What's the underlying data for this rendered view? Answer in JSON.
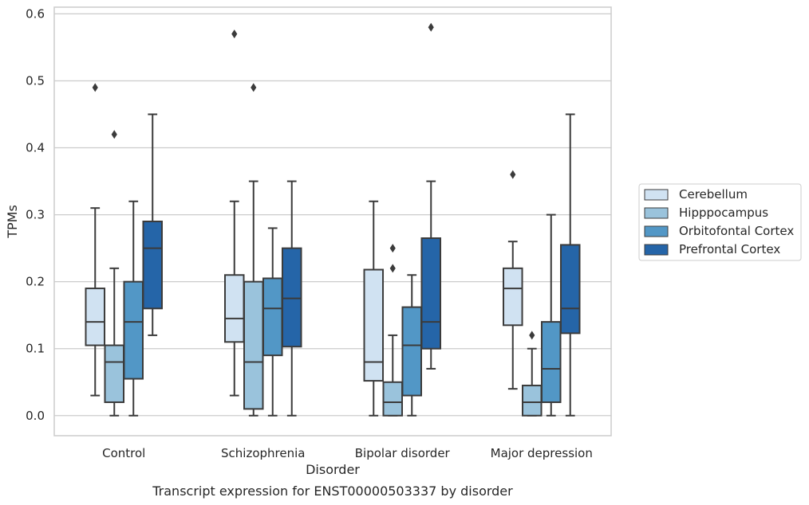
{
  "chart_data": {
    "type": "box",
    "xlabel": "Disorder",
    "ylabel": "TPMs",
    "caption": "Transcript expression for ENST00000503337 by disorder",
    "ylim": [
      -0.03,
      0.61
    ],
    "yticks": [
      "0.0",
      "0.1",
      "0.2",
      "0.3",
      "0.4",
      "0.5",
      "0.6"
    ],
    "grid": "horizontal",
    "legend_placement": "right",
    "categories": [
      "Control",
      "Schizophrenia",
      "Bipolar disorder",
      "Major depression"
    ],
    "series": [
      {
        "name": "Cerebellum",
        "color": "#d0e2f2",
        "boxes": [
          {
            "whisker_low": 0.03,
            "q1": 0.105,
            "median": 0.14,
            "q3": 0.19,
            "whisker_high": 0.31,
            "outliers": [
              0.49
            ]
          },
          {
            "whisker_low": 0.03,
            "q1": 0.11,
            "median": 0.145,
            "q3": 0.21,
            "whisker_high": 0.32,
            "outliers": [
              0.57
            ]
          },
          {
            "whisker_low": 0.0,
            "q1": 0.052,
            "median": 0.08,
            "q3": 0.218,
            "whisker_high": 0.32,
            "outliers": []
          },
          {
            "whisker_low": 0.04,
            "q1": 0.135,
            "median": 0.19,
            "q3": 0.22,
            "whisker_high": 0.26,
            "outliers": [
              0.36
            ]
          }
        ]
      },
      {
        "name": "Hipppocampus",
        "color": "#9ac3dc",
        "boxes": [
          {
            "whisker_low": 0.0,
            "q1": 0.02,
            "median": 0.08,
            "q3": 0.105,
            "whisker_high": 0.22,
            "outliers": [
              0.42
            ]
          },
          {
            "whisker_low": 0.0,
            "q1": 0.01,
            "median": 0.08,
            "q3": 0.2,
            "whisker_high": 0.35,
            "outliers": [
              0.49
            ]
          },
          {
            "whisker_low": 0.0,
            "q1": 0.0,
            "median": 0.02,
            "q3": 0.05,
            "whisker_high": 0.12,
            "outliers": [
              0.22,
              0.25
            ]
          },
          {
            "whisker_low": 0.0,
            "q1": 0.0,
            "median": 0.02,
            "q3": 0.045,
            "whisker_high": 0.1,
            "outliers": [
              0.12
            ]
          }
        ]
      },
      {
        "name": "Orbitofontal Cortex",
        "color": "#5297c6",
        "boxes": [
          {
            "whisker_low": 0.0,
            "q1": 0.055,
            "median": 0.14,
            "q3": 0.2,
            "whisker_high": 0.32,
            "outliers": []
          },
          {
            "whisker_low": 0.0,
            "q1": 0.09,
            "median": 0.16,
            "q3": 0.205,
            "whisker_high": 0.28,
            "outliers": []
          },
          {
            "whisker_low": 0.0,
            "q1": 0.03,
            "median": 0.105,
            "q3": 0.162,
            "whisker_high": 0.21,
            "outliers": []
          },
          {
            "whisker_low": 0.0,
            "q1": 0.02,
            "median": 0.07,
            "q3": 0.14,
            "whisker_high": 0.3,
            "outliers": []
          }
        ]
      },
      {
        "name": "Prefrontal Cortex",
        "color": "#2565a8",
        "boxes": [
          {
            "whisker_low": 0.12,
            "q1": 0.16,
            "median": 0.25,
            "q3": 0.29,
            "whisker_high": 0.45,
            "outliers": []
          },
          {
            "whisker_low": 0.0,
            "q1": 0.103,
            "median": 0.175,
            "q3": 0.25,
            "whisker_high": 0.35,
            "outliers": []
          },
          {
            "whisker_low": 0.07,
            "q1": 0.1,
            "median": 0.14,
            "q3": 0.265,
            "whisker_high": 0.35,
            "outliers": [
              0.58
            ]
          },
          {
            "whisker_low": 0.0,
            "q1": 0.123,
            "median": 0.16,
            "q3": 0.255,
            "whisker_high": 0.45,
            "outliers": []
          }
        ]
      }
    ]
  }
}
